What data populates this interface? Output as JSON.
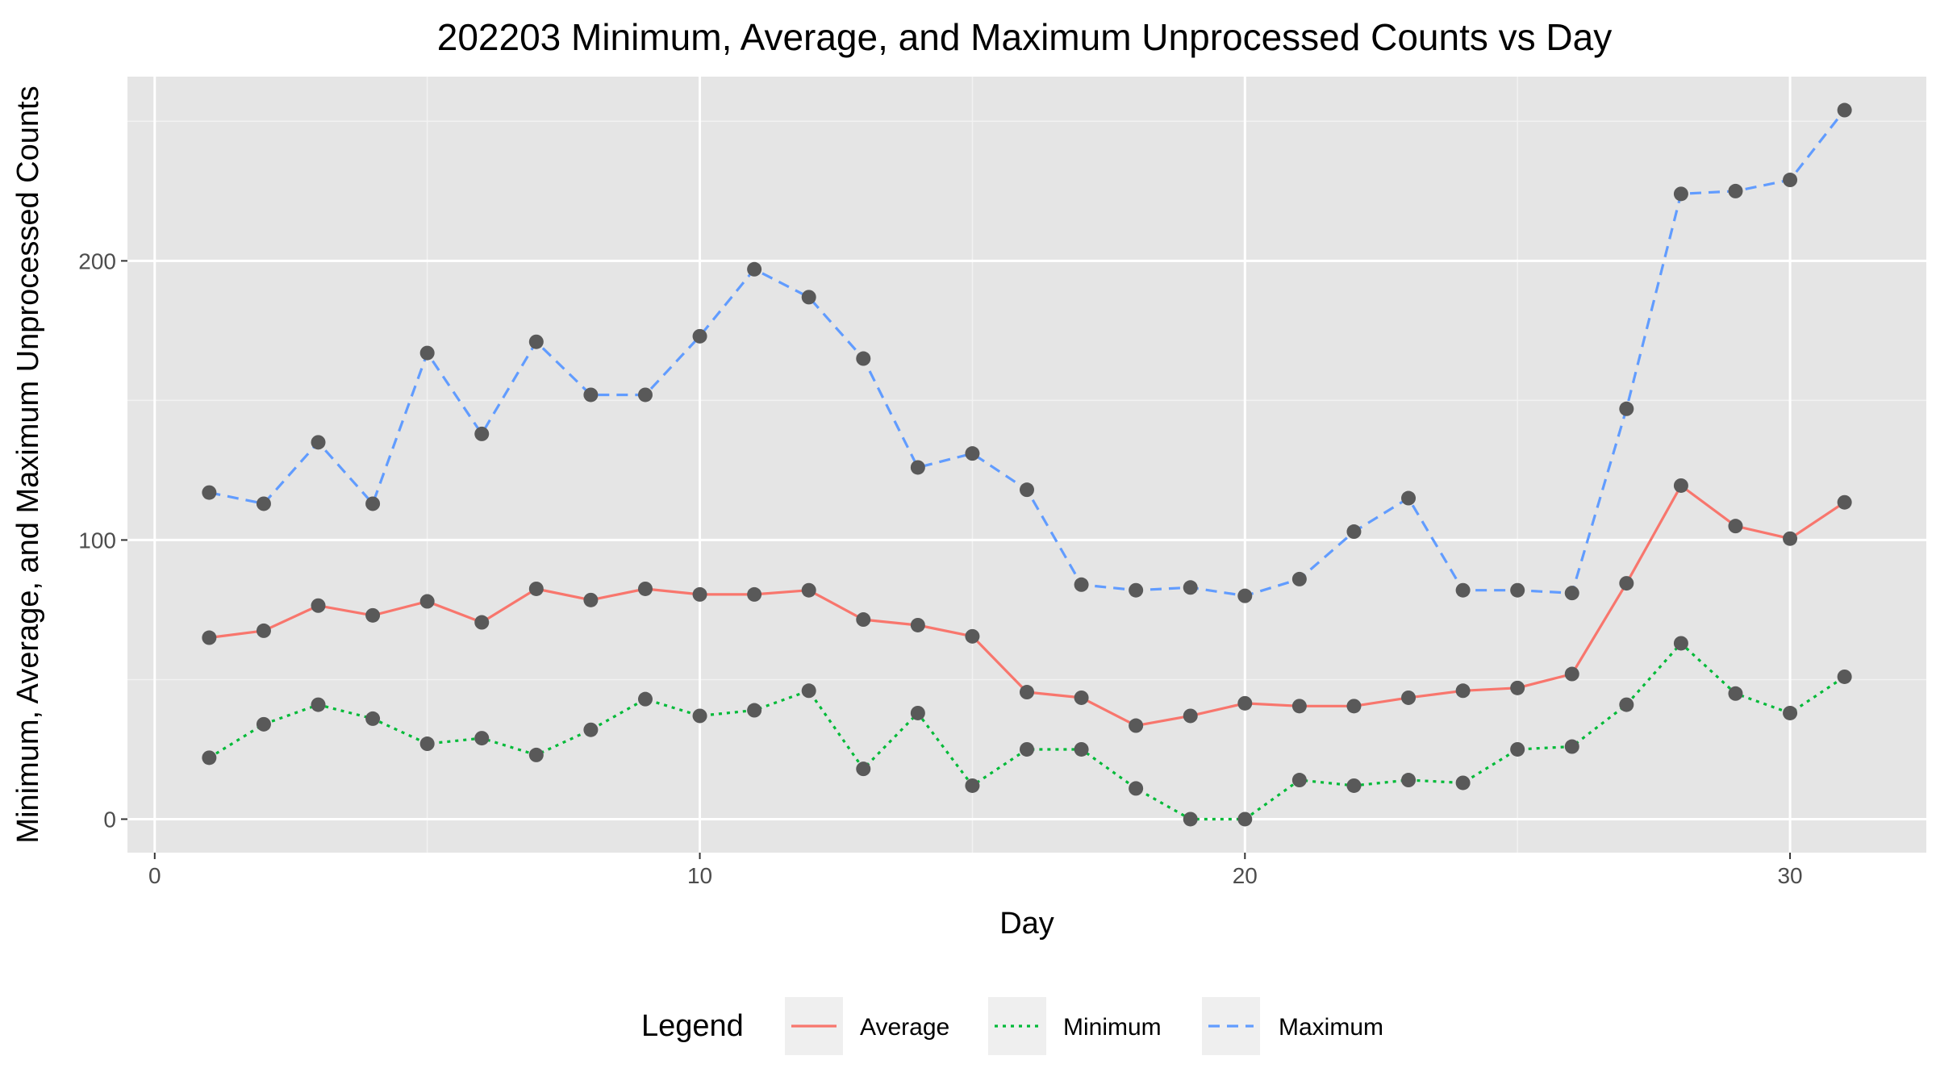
{
  "chart_data": {
    "type": "line",
    "title": "202203 Minimum, Average, and Maximum Unprocessed Counts vs Day",
    "xlabel": "Day",
    "ylabel": "Minimum, Average, and Maximum Unprocessed Counts",
    "xlim": [
      -0.5,
      32.5
    ],
    "ylim": [
      -12,
      266
    ],
    "xticks": [
      0,
      10,
      20,
      30
    ],
    "yticks": [
      0,
      100,
      200
    ],
    "grid": true,
    "legend_position": "bottom",
    "legend_title": "Legend",
    "x": [
      1,
      2,
      3,
      4,
      5,
      6,
      7,
      8,
      9,
      10,
      11,
      12,
      13,
      14,
      15,
      16,
      17,
      18,
      19,
      20,
      21,
      22,
      23,
      24,
      25,
      26,
      27,
      28,
      29,
      30,
      31
    ],
    "series": [
      {
        "name": "Average",
        "color": "#F8766D",
        "dash": "solid",
        "values": [
          65,
          67.5,
          76.5,
          73,
          78,
          70.5,
          82.5,
          78.5,
          82.5,
          80.5,
          80.5,
          82,
          71.5,
          69.5,
          65.5,
          45.5,
          43.5,
          33.5,
          37,
          41.5,
          40.5,
          40.5,
          43.5,
          46,
          47,
          52,
          84.5,
          119.5,
          105,
          100.5,
          113.5
        ]
      },
      {
        "name": "Minimum",
        "color": "#00BA38",
        "dash": "dotted",
        "values": [
          22,
          34,
          41,
          36,
          27,
          29,
          23,
          32,
          43,
          37,
          39,
          46,
          18,
          38,
          12,
          25,
          25,
          11,
          0,
          0,
          14,
          12,
          14,
          13,
          25,
          26,
          41,
          63,
          45,
          38,
          51
        ]
      },
      {
        "name": "Maximum",
        "color": "#619CFF",
        "dash": "dashed",
        "values": [
          117,
          113,
          135,
          113,
          167,
          138,
          171,
          152,
          152,
          173,
          197,
          187,
          165,
          126,
          131,
          118,
          84,
          82,
          83,
          80,
          86,
          103,
          115,
          82,
          82,
          81,
          147,
          224,
          225,
          229,
          254
        ]
      }
    ],
    "point_color": "#595959"
  }
}
